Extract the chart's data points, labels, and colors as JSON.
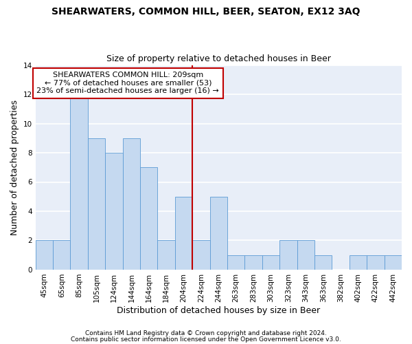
{
  "title": "SHEARWATERS, COMMON HILL, BEER, SEATON, EX12 3AQ",
  "subtitle": "Size of property relative to detached houses in Beer",
  "xlabel": "Distribution of detached houses by size in Beer",
  "ylabel": "Number of detached properties",
  "categories": [
    "45sqm",
    "65sqm",
    "85sqm",
    "105sqm",
    "124sqm",
    "144sqm",
    "164sqm",
    "184sqm",
    "204sqm",
    "224sqm",
    "244sqm",
    "263sqm",
    "283sqm",
    "303sqm",
    "323sqm",
    "343sqm",
    "363sqm",
    "382sqm",
    "402sqm",
    "422sqm",
    "442sqm"
  ],
  "values": [
    2,
    2,
    12,
    9,
    8,
    9,
    7,
    2,
    5,
    2,
    5,
    1,
    1,
    1,
    2,
    2,
    1,
    0,
    1,
    1,
    1
  ],
  "bar_color": "#C5D9F0",
  "bar_edge_color": "#5B9BD5",
  "vline_x_index": 8.5,
  "vline_color": "#C00000",
  "annotation_line1": "SHEARWATERS COMMON HILL: 209sqm",
  "annotation_line2": "← 77% of detached houses are smaller (53)",
  "annotation_line3": "23% of semi-detached houses are larger (16) →",
  "annotation_box_facecolor": "#ffffff",
  "annotation_box_edgecolor": "#C00000",
  "ylim": [
    0,
    14
  ],
  "yticks": [
    0,
    2,
    4,
    6,
    8,
    10,
    12,
    14
  ],
  "background_color": "#E8EEF8",
  "grid_color": "#ffffff",
  "footnote1": "Contains HM Land Registry data © Crown copyright and database right 2024.",
  "footnote2": "Contains public sector information licensed under the Open Government Licence v3.0.",
  "title_fontsize": 10,
  "subtitle_fontsize": 9,
  "axis_label_fontsize": 9,
  "tick_fontsize": 7.5,
  "annotation_fontsize": 8,
  "footnote_fontsize": 6.5
}
